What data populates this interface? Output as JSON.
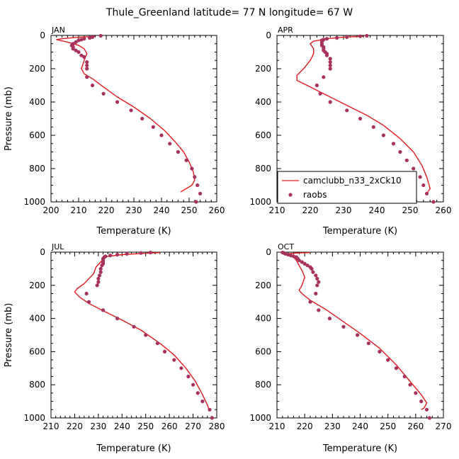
{
  "title": "Thule_Greenland  latitude= 77 N longitude= 67 W",
  "colors": {
    "model": "#e31a1c",
    "obs": "#a8325e",
    "axis": "#000000"
  },
  "legend": {
    "placement": "lower-left of APR panel",
    "model_label": "camclubb_n33_2xCk10",
    "obs_label": "raobs"
  },
  "chart_data": [
    {
      "type": "line",
      "panel": "JAN",
      "xlabel": "Temperature (K)",
      "ylabel": "Pressure (mb)",
      "xlim": [
        200,
        260
      ],
      "ylim": [
        1000,
        0
      ],
      "xticks": [
        200,
        210,
        220,
        230,
        240,
        250,
        260
      ],
      "yticks": [
        0,
        200,
        400,
        600,
        800,
        1000
      ],
      "series": [
        {
          "name": "camclubb_n33_2xCk10",
          "kind": "line",
          "points": [
            [
              216,
              5
            ],
            [
              209,
              12
            ],
            [
              204,
              20
            ],
            [
              202,
              25
            ],
            [
              206,
              40
            ],
            [
              210,
              60
            ],
            [
              212,
              80
            ],
            [
              213,
              110
            ],
            [
              212,
              150
            ],
            [
              211,
              200
            ],
            [
              212,
              230
            ],
            [
              215,
              260
            ],
            [
              219,
              310
            ],
            [
              224,
              370
            ],
            [
              230,
              430
            ],
            [
              236,
              500
            ],
            [
              241,
              570
            ],
            [
              245,
              640
            ],
            [
              248,
              700
            ],
            [
              250,
              760
            ],
            [
              251.5,
              820
            ],
            [
              252,
              870
            ],
            [
              251,
              900
            ],
            [
              249,
              920
            ],
            [
              247,
              940
            ]
          ]
        },
        {
          "name": "raobs",
          "kind": "scatter",
          "points": [
            [
              218,
              2
            ],
            [
              215,
              10
            ],
            [
              214,
              15
            ],
            [
              212,
              20
            ],
            [
              211,
              25
            ],
            [
              210,
              30
            ],
            [
              209,
              40
            ],
            [
              208,
              50
            ],
            [
              207.5,
              60
            ],
            [
              208,
              70
            ],
            [
              208,
              80
            ],
            [
              209,
              90
            ],
            [
              210,
              100
            ],
            [
              211,
              120
            ],
            [
              212,
              130
            ],
            [
              213,
              160
            ],
            [
              213,
              180
            ],
            [
              213,
              200
            ],
            [
              213,
              250
            ],
            [
              215,
              300
            ],
            [
              219,
              350
            ],
            [
              224,
              400
            ],
            [
              229,
              450
            ],
            [
              233,
              500
            ],
            [
              237,
              550
            ],
            [
              240,
              600
            ],
            [
              243,
              650
            ],
            [
              246,
              700
            ],
            [
              249,
              750
            ],
            [
              251,
              800
            ],
            [
              252,
              850
            ],
            [
              253,
              900
            ],
            [
              254,
              950
            ],
            [
              252.5,
              1000
            ]
          ]
        }
      ]
    },
    {
      "type": "line",
      "panel": "APR",
      "xlabel": "Temperature (K)",
      "ylabel": "",
      "xlim": [
        210,
        260
      ],
      "ylim": [
        1000,
        0
      ],
      "xticks": [
        210,
        220,
        230,
        240,
        250,
        260
      ],
      "yticks": [
        0,
        200,
        400,
        600,
        800,
        1000
      ],
      "series": [
        {
          "name": "camclubb_n33_2xCk10",
          "kind": "line",
          "points": [
            [
              236,
              5
            ],
            [
              230,
              10
            ],
            [
              225,
              20
            ],
            [
              221,
              35
            ],
            [
              220,
              50
            ],
            [
              221,
              80
            ],
            [
              221,
              110
            ],
            [
              220,
              150
            ],
            [
              218,
              200
            ],
            [
              216,
              240
            ],
            [
              216,
              270
            ],
            [
              220,
              310
            ],
            [
              225,
              360
            ],
            [
              231,
              420
            ],
            [
              237,
              480
            ],
            [
              242,
              540
            ],
            [
              247,
              620
            ],
            [
              251,
              700
            ],
            [
              253.5,
              780
            ],
            [
              255,
              850
            ],
            [
              256,
              920
            ],
            [
              255,
              950
            ]
          ]
        },
        {
          "name": "raobs",
          "kind": "scatter",
          "points": [
            [
              237,
              2
            ],
            [
              235,
              5
            ],
            [
              231,
              10
            ],
            [
              228,
              15
            ],
            [
              225,
              20
            ],
            [
              224,
              25
            ],
            [
              223.5,
              30
            ],
            [
              223.5,
              40
            ],
            [
              223.5,
              50
            ],
            [
              223.5,
              60
            ],
            [
              224,
              70
            ],
            [
              224,
              80
            ],
            [
              224,
              90
            ],
            [
              224.5,
              100
            ],
            [
              225,
              110
            ],
            [
              225,
              120
            ],
            [
              226,
              140
            ],
            [
              226,
              160
            ],
            [
              226,
              180
            ],
            [
              226,
              200
            ],
            [
              224,
              250
            ],
            [
              222,
              300
            ],
            [
              223,
              350
            ],
            [
              226,
              400
            ],
            [
              231,
              450
            ],
            [
              235,
              500
            ],
            [
              239,
              550
            ],
            [
              242,
              600
            ],
            [
              245,
              650
            ],
            [
              247,
              700
            ],
            [
              249,
              750
            ],
            [
              251,
              800
            ],
            [
              253,
              850
            ],
            [
              254,
              900
            ],
            [
              255,
              950
            ],
            [
              257,
              1000
            ]
          ]
        }
      ]
    },
    {
      "type": "line",
      "panel": "JUL",
      "xlabel": "Temperature (K)",
      "ylabel": "Pressure (mb)",
      "xlim": [
        210,
        280
      ],
      "ylim": [
        1000,
        0
      ],
      "xticks": [
        210,
        220,
        230,
        240,
        250,
        260,
        270,
        280
      ],
      "yticks": [
        0,
        200,
        400,
        600,
        800,
        1000
      ],
      "series": [
        {
          "name": "camclubb_n33_2xCk10",
          "kind": "line",
          "points": [
            [
              256,
              2
            ],
            [
              248,
              8
            ],
            [
              240,
              15
            ],
            [
              234,
              25
            ],
            [
              232,
              40
            ],
            [
              231,
              60
            ],
            [
              229,
              90
            ],
            [
              228,
              130
            ],
            [
              226,
              160
            ],
            [
              224,
              190
            ],
            [
              221,
              220
            ],
            [
              220,
              240
            ],
            [
              222,
              270
            ],
            [
              226,
              310
            ],
            [
              233,
              360
            ],
            [
              240,
              410
            ],
            [
              248,
              470
            ],
            [
              256,
              550
            ],
            [
              262,
              620
            ],
            [
              267,
              700
            ],
            [
              271,
              780
            ],
            [
              274,
              860
            ],
            [
              276,
              920
            ],
            [
              277,
              960
            ]
          ]
        },
        {
          "name": "raobs",
          "kind": "scatter",
          "points": [
            [
              252,
              2
            ],
            [
              248,
              5
            ],
            [
              242,
              10
            ],
            [
              238,
              15
            ],
            [
              235,
              20
            ],
            [
              233,
              25
            ],
            [
              232.5,
              30
            ],
            [
              232,
              40
            ],
            [
              232,
              50
            ],
            [
              232,
              60
            ],
            [
              232,
              70
            ],
            [
              231.5,
              80
            ],
            [
              231,
              100
            ],
            [
              231,
              120
            ],
            [
              230.5,
              140
            ],
            [
              230,
              160
            ],
            [
              230,
              180
            ],
            [
              229.5,
              200
            ],
            [
              225,
              250
            ],
            [
              226,
              300
            ],
            [
              232,
              350
            ],
            [
              238,
              400
            ],
            [
              245,
              450
            ],
            [
              250,
              500
            ],
            [
              255,
              550
            ],
            [
              258,
              600
            ],
            [
              262,
              650
            ],
            [
              265,
              700
            ],
            [
              268,
              750
            ],
            [
              270,
              800
            ],
            [
              272,
              850
            ],
            [
              274,
              900
            ],
            [
              277,
              950
            ],
            [
              278,
              1000
            ]
          ]
        }
      ]
    },
    {
      "type": "line",
      "panel": "OCT",
      "xlabel": "Temperature (K)",
      "ylabel": "",
      "xlim": [
        210,
        270
      ],
      "ylim": [
        1000,
        0
      ],
      "xticks": [
        210,
        220,
        230,
        240,
        250,
        260,
        270
      ],
      "yticks": [
        0,
        200,
        400,
        600,
        800,
        1000
      ],
      "series": [
        {
          "name": "camclubb_n33_2xCk10",
          "kind": "line",
          "points": [
            [
              222,
              2
            ],
            [
              217,
              5
            ],
            [
              214,
              10
            ],
            [
              213,
              15
            ],
            [
              214,
              20
            ],
            [
              216,
              30
            ],
            [
              217,
              50
            ],
            [
              218,
              80
            ],
            [
              219,
              110
            ],
            [
              220,
              150
            ],
            [
              219,
              200
            ],
            [
              218,
              230
            ],
            [
              219,
              250
            ],
            [
              222,
              290
            ],
            [
              228,
              350
            ],
            [
              234,
              420
            ],
            [
              240,
              490
            ],
            [
              247,
              580
            ],
            [
              253,
              680
            ],
            [
              258,
              780
            ],
            [
              262,
              860
            ],
            [
              264,
              910
            ],
            [
              263,
              940
            ],
            [
              262,
              950
            ]
          ]
        },
        {
          "name": "raobs",
          "kind": "scatter",
          "points": [
            [
              212,
              2
            ],
            [
              212.5,
              5
            ],
            [
              213,
              10
            ],
            [
              214,
              15
            ],
            [
              215,
              20
            ],
            [
              216,
              25
            ],
            [
              217,
              30
            ],
            [
              217.5,
              40
            ],
            [
              218,
              50
            ],
            [
              219,
              60
            ],
            [
              220,
              70
            ],
            [
              221,
              80
            ],
            [
              222,
              90
            ],
            [
              222.5,
              100
            ],
            [
              223,
              120
            ],
            [
              224,
              140
            ],
            [
              224.5,
              160
            ],
            [
              225,
              180
            ],
            [
              224.5,
              200
            ],
            [
              224,
              250
            ],
            [
              222,
              300
            ],
            [
              225,
              350
            ],
            [
              229,
              400
            ],
            [
              234,
              450
            ],
            [
              239,
              500
            ],
            [
              243,
              550
            ],
            [
              247,
              600
            ],
            [
              250,
              650
            ],
            [
              253,
              700
            ],
            [
              256,
              750
            ],
            [
              258,
              800
            ],
            [
              260,
              850
            ],
            [
              262,
              900
            ],
            [
              264,
              950
            ],
            [
              265,
              1000
            ]
          ]
        }
      ]
    }
  ]
}
